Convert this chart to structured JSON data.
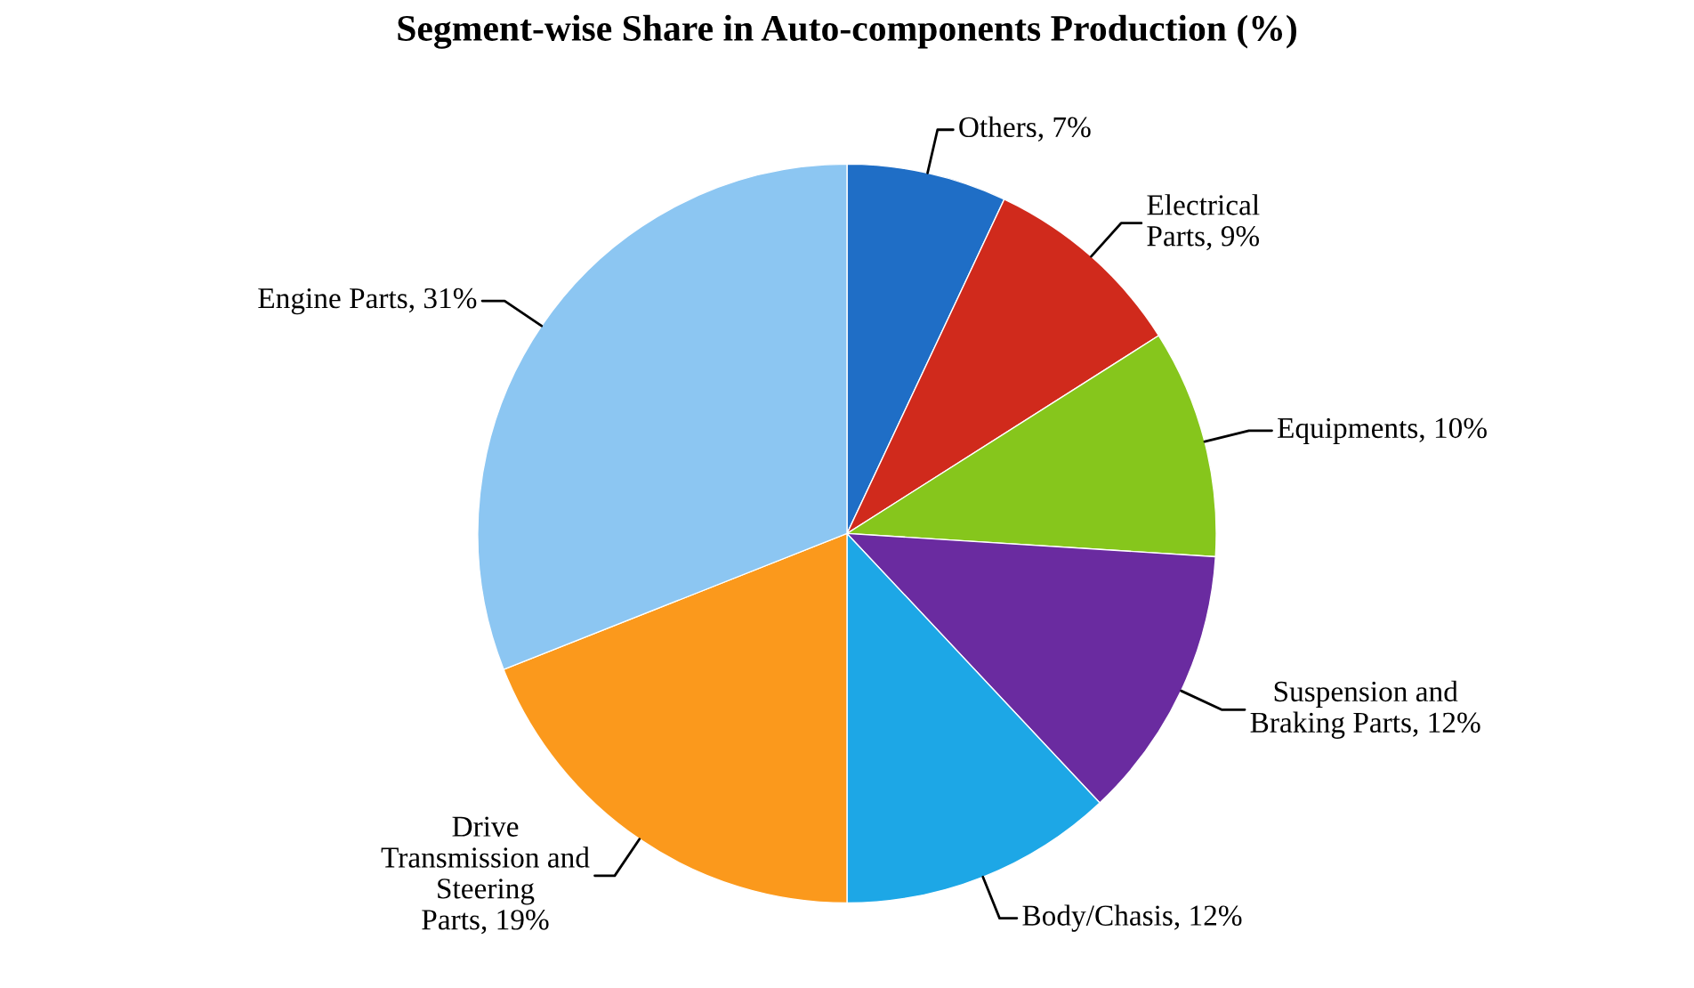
{
  "chart_data": {
    "type": "pie",
    "title": "Segment-wise Share in Auto-components Production (%)",
    "categories": [
      "Others",
      "Electrical Parts",
      "Equipments",
      "Suspension and Braking Parts",
      "Body/Chasis",
      "Drive Transmission and Steering Parts",
      "Engine Parts"
    ],
    "values": [
      7,
      9,
      10,
      12,
      12,
      19,
      31
    ],
    "colors": [
      "#1f6ec6",
      "#d02a1c",
      "#86c61c",
      "#6a2ba0",
      "#1da7e6",
      "#fb991c",
      "#8cc6f2"
    ],
    "value_labels": [
      "7%",
      "9%",
      "10%",
      "12%",
      "12%",
      "19%",
      "31%"
    ]
  }
}
